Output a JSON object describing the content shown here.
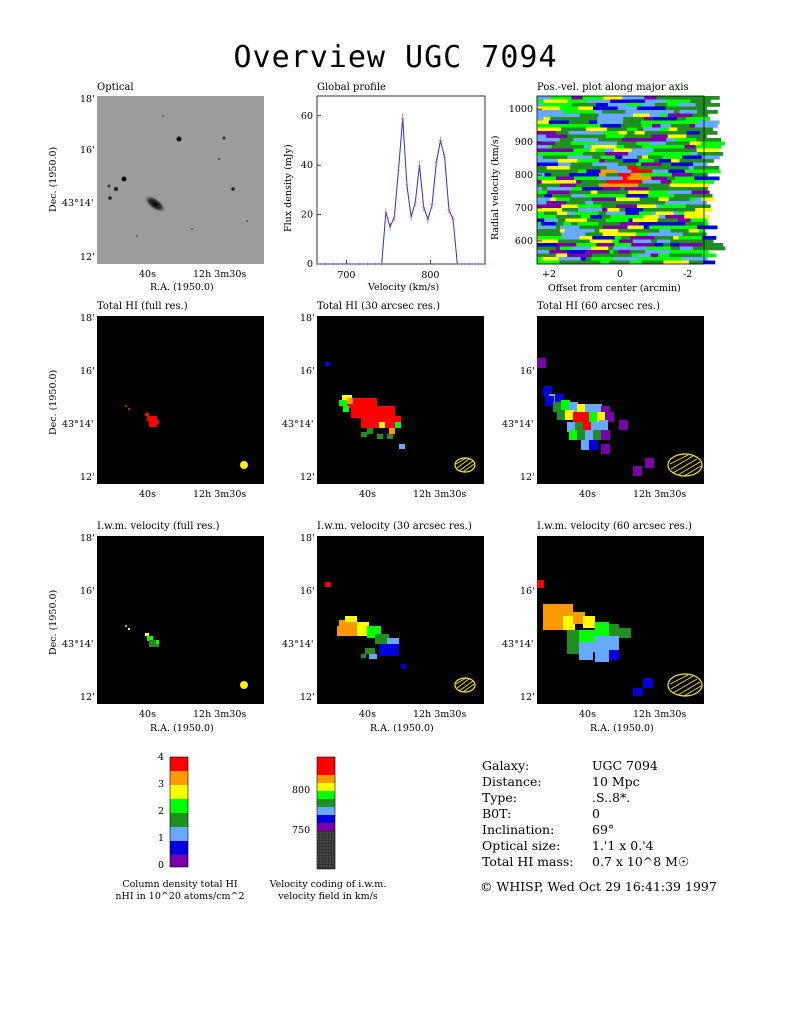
{
  "title": "Overview UGC 7094",
  "panels": {
    "optical": "Optical",
    "profile": "Global profile",
    "pv": "Pos.-vel. plot along major axis",
    "hi_full": "Total HI (full res.)",
    "hi_30": "Total HI (30 arcsec res.)",
    "hi_60": "Total HI (60 arcsec res.)",
    "vel_full": "I.w.m. velocity (full res.)",
    "vel_30": "I.w.m. velocity (30 arcsec res.)",
    "vel_60": "I.w.m. velocity (60 arcsec res.)"
  },
  "axes": {
    "dec": "Dec. (1950.0)",
    "ra": "R.A. (1950.0)",
    "dec_ticks": [
      "18'",
      "16'",
      "43°14'",
      "12'"
    ],
    "ra_ticks": [
      "40s",
      "12h 3m30s"
    ],
    "flux_label": "Flux density (mJy)",
    "vel_label": "Velocity (km/s)",
    "radvel_label": "Radial velocity (km/s)",
    "offset_label": "Offset from center (arcmin)",
    "offset_ticks": [
      "+2",
      "0",
      "-2"
    ]
  },
  "chart_data": [
    {
      "type": "line",
      "title": "Global profile",
      "xlabel": "Velocity (km/s)",
      "ylabel": "Flux density (mJy)",
      "xlim": [
        665,
        865
      ],
      "ylim": [
        0,
        68
      ],
      "xticks": [
        700,
        800
      ],
      "yticks": [
        0,
        20,
        40,
        60
      ],
      "x": [
        665,
        675,
        685,
        695,
        705,
        715,
        725,
        735,
        742,
        747,
        752,
        757,
        762,
        767,
        772,
        777,
        782,
        787,
        792,
        797,
        802,
        807,
        812,
        817,
        822,
        827,
        832,
        837,
        847,
        857,
        865
      ],
      "y": [
        0,
        0,
        0,
        0,
        0,
        0,
        0,
        0,
        0,
        21,
        15,
        19,
        38,
        59,
        32,
        19,
        25,
        40,
        23,
        18,
        24,
        41,
        50,
        43,
        22,
        18,
        0,
        0,
        0,
        0,
        0
      ]
    },
    {
      "type": "heatmap",
      "title": "Pos.-vel. plot along major axis",
      "xlabel": "Offset from center (arcmin)",
      "ylabel": "Radial velocity (km/s)",
      "xlim": [
        2.7,
        -2.5
      ],
      "ylim": [
        530,
        1040
      ],
      "yticks": [
        600,
        700,
        800,
        900,
        1000
      ]
    }
  ],
  "colorbars": {
    "column_density": {
      "ticks": [
        "0",
        "1",
        "2",
        "3",
        "4"
      ],
      "caption_line1": "Column density total HI",
      "caption_line2": "nHI in 10^20 atoms/cm^2"
    },
    "velocity": {
      "ticks": [
        "750",
        "800"
      ],
      "caption_line1": "Velocity coding of i.w.m.",
      "caption_line2": "velocity field in km/s"
    }
  },
  "info": {
    "rows": [
      {
        "label": "Galaxy:",
        "value": "UGC 7094"
      },
      {
        "label": "Distance:",
        "value": "10 Mpc"
      },
      {
        "label": "Type:",
        "value": ".S..8*."
      },
      {
        "label": "B0T:",
        "value": "0"
      },
      {
        "label": "Inclination:",
        "value": "69°"
      },
      {
        "label": "Optical size:",
        "value": "1.'1 x 0.'4"
      },
      {
        "label": "Total HI mass:",
        "value": "0.7 x 10^8 M☉"
      }
    ],
    "footer": "© WHISP, Wed Oct 29 16:41:39 1997"
  },
  "colors": {
    "red": "#ff0000",
    "orange": "#ff9900",
    "yellow": "#ffff00",
    "lime": "#00ff00",
    "green": "#1f8f1f",
    "lightblue": "#66aaff",
    "blue": "#0000dd",
    "purple": "#7a00aa",
    "beam": "#ffee00"
  }
}
